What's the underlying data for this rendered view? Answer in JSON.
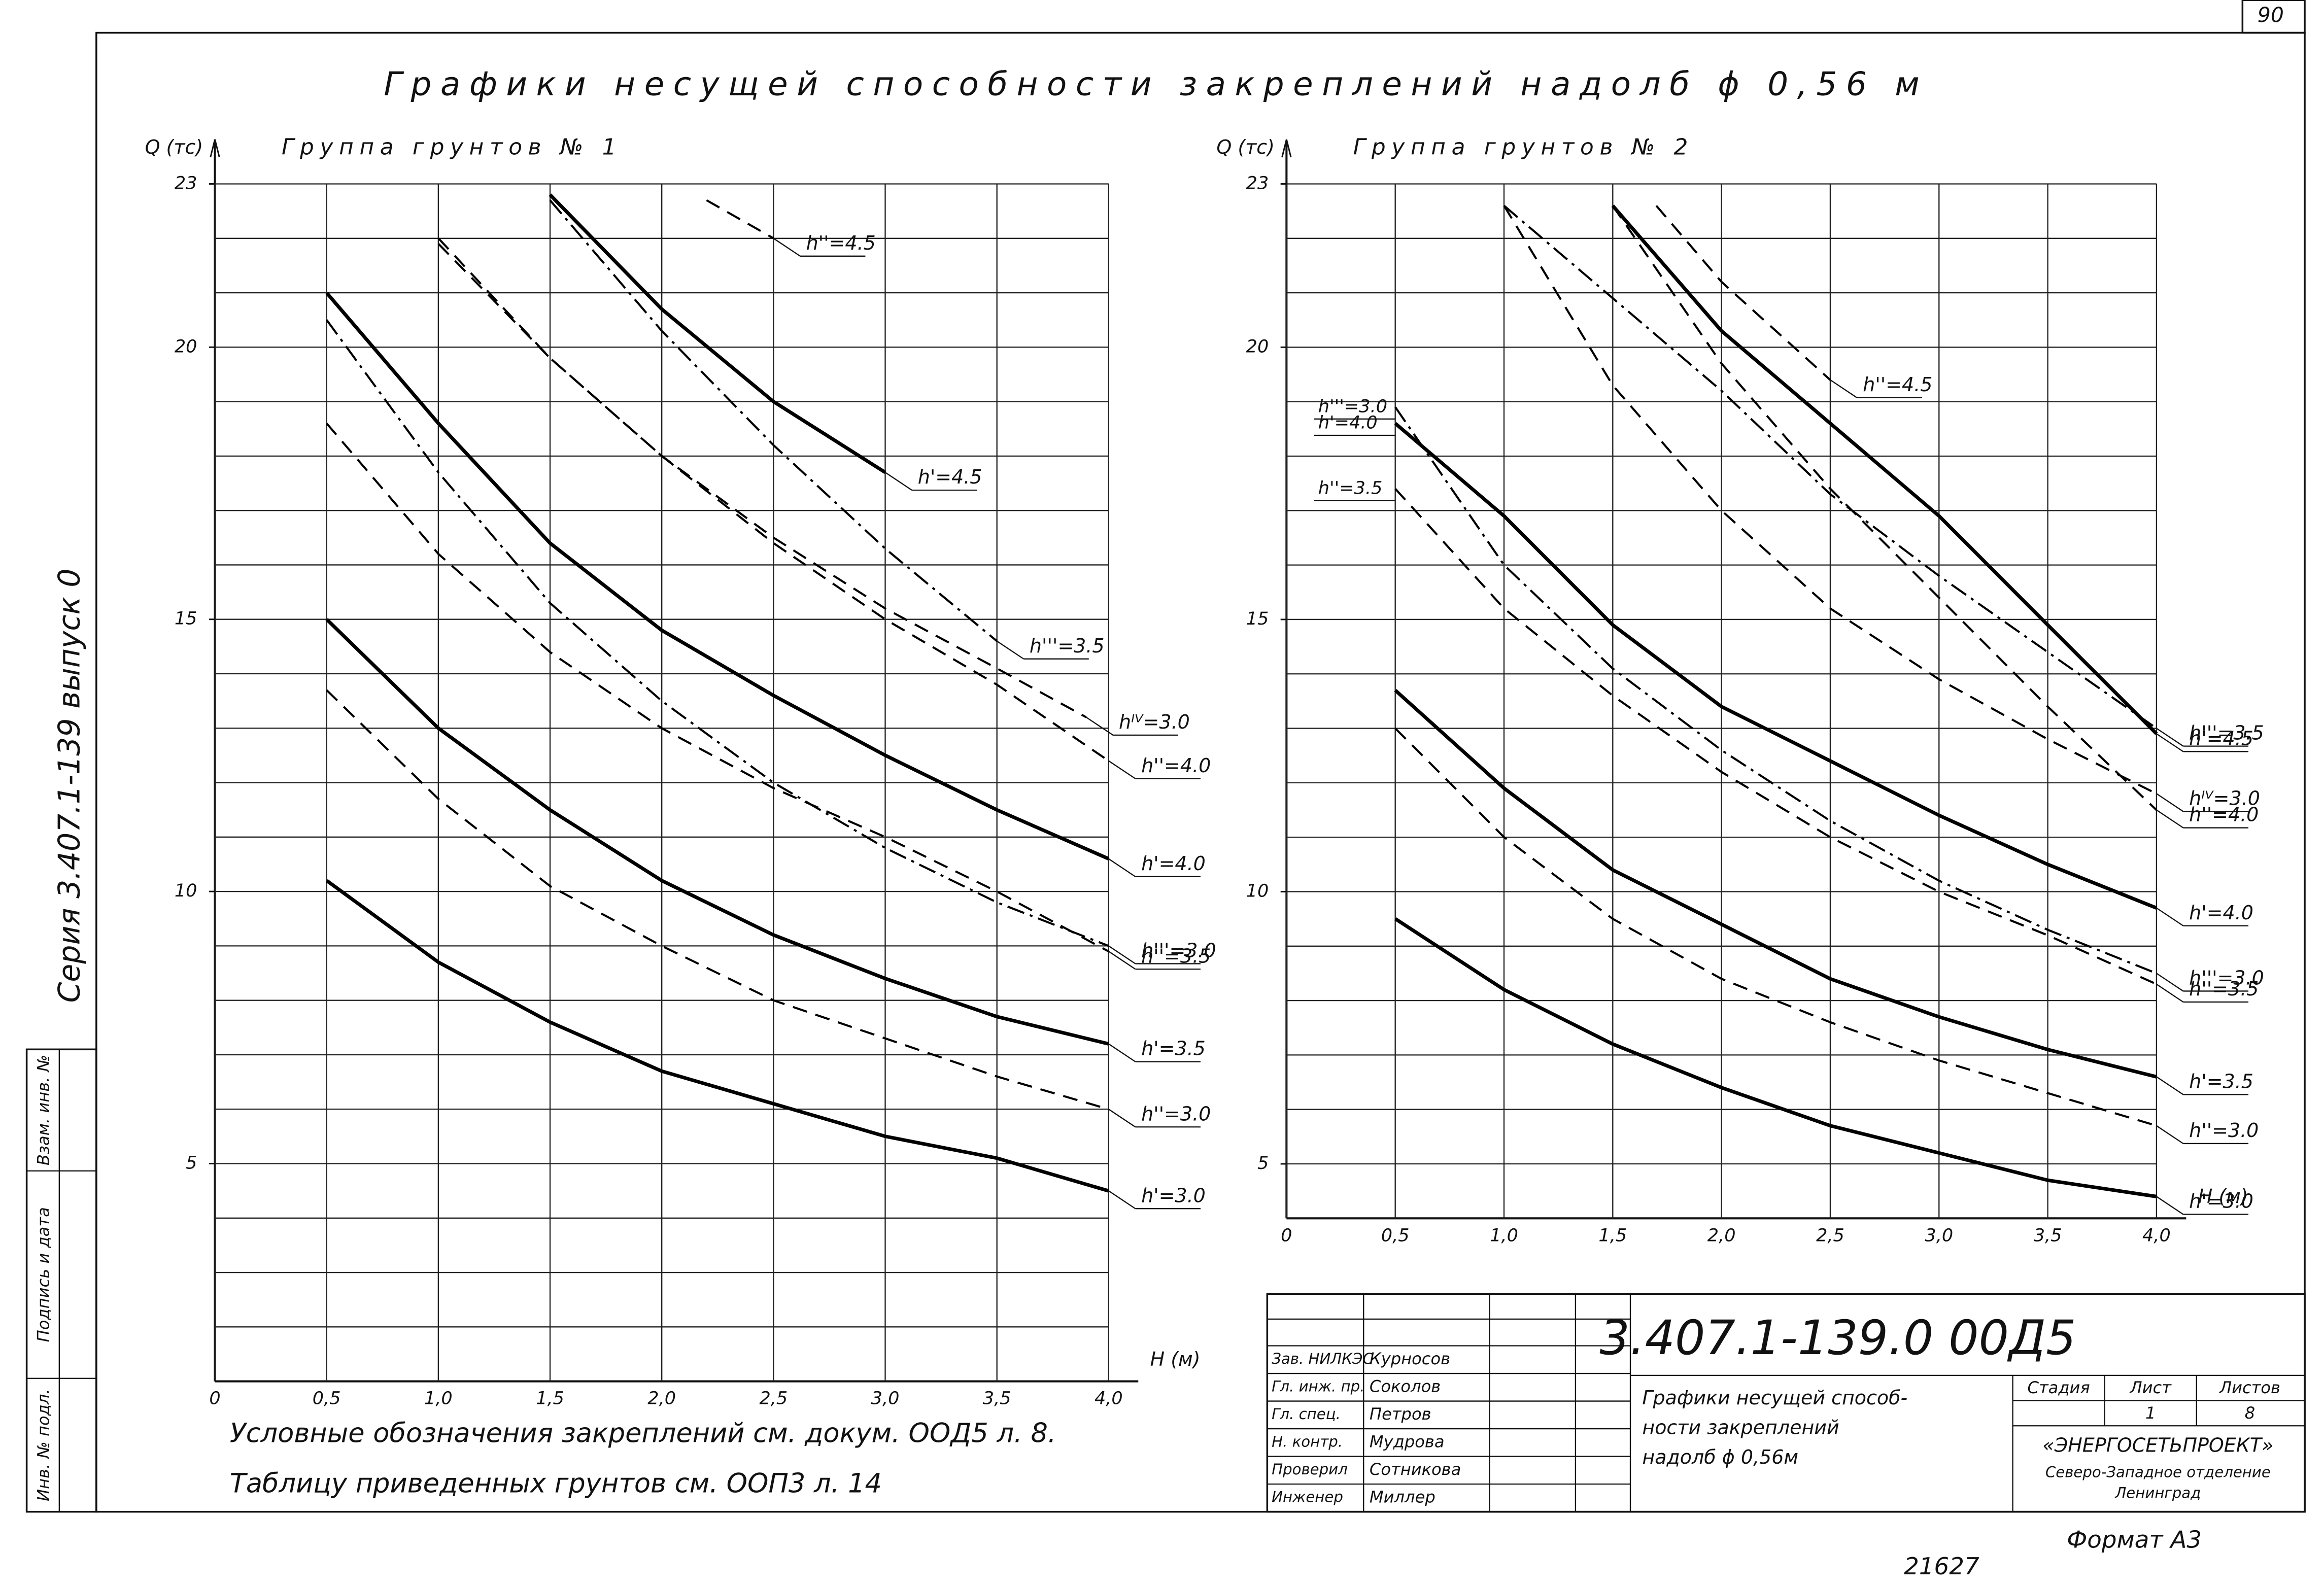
{
  "sheet": {
    "number": "90",
    "format": "Формат А3",
    "inventory": "21627"
  },
  "title": "Графики несущей способности закреплений надолб ϕ 0,56 м",
  "margin": {
    "series": "Серия 3.407.1-139 выпуск 0",
    "cells": [
      "Взам. инв. №",
      "Подпись и дата",
      "Инв. № подл."
    ]
  },
  "chart_data": [
    {
      "type": "line",
      "title": "Группа грунтов № 1",
      "y_label": "Q (тс)",
      "x_label": "H (м)",
      "xlim": [
        0,
        4
      ],
      "xticks": [
        0,
        {
          "value": 0.5,
          "label": "0,5"
        },
        {
          "value": 1,
          "label": "1,0"
        },
        {
          "value": 1.5,
          "label": "1,5"
        },
        {
          "value": 2,
          "label": "2,0"
        },
        {
          "value": 2.5,
          "label": "2,5"
        },
        {
          "value": 3,
          "label": "3,0"
        },
        {
          "value": 3.5,
          "label": "3,5"
        },
        {
          "value": 4,
          "label": "4,0"
        }
      ],
      "ylim": [
        1,
        23
      ],
      "yticks": [
        5,
        10,
        15,
        20,
        23
      ],
      "ygrid": [
        2,
        3,
        4,
        5,
        6,
        7,
        8,
        9,
        10,
        11,
        12,
        13,
        14,
        15,
        16,
        17,
        18,
        19,
        20,
        21,
        22
      ],
      "grid": true,
      "series": [
        {
          "name": "h'=3.0",
          "color": "#000000",
          "style": "solid",
          "x": [
            0.5,
            1,
            1.5,
            2,
            2.5,
            3,
            3.5,
            4
          ],
          "values": [
            10.2,
            8.7,
            7.6,
            6.7,
            6.1,
            5.5,
            5.1,
            4.5
          ]
        },
        {
          "name": "h''=3.0",
          "color": "#000000",
          "style": "dashed",
          "x": [
            0.5,
            1,
            1.5,
            2,
            2.5,
            3,
            3.5,
            4
          ],
          "values": [
            13.7,
            11.7,
            10.1,
            9.0,
            8.0,
            7.3,
            6.6,
            6.0
          ]
        },
        {
          "name": "h'=3.5",
          "color": "#000000",
          "style": "solid",
          "x": [
            0.5,
            1,
            1.5,
            2,
            2.5,
            3,
            3.5,
            4
          ],
          "values": [
            15.0,
            13.0,
            11.5,
            10.2,
            9.2,
            8.4,
            7.7,
            7.2
          ]
        },
        {
          "name": "h''=3.5",
          "color": "#000000",
          "style": "dashed",
          "x": [
            0.5,
            1,
            1.5,
            2,
            2.5,
            3,
            3.5,
            4
          ],
          "values": [
            18.6,
            16.2,
            14.4,
            13.0,
            11.9,
            11.0,
            10.0,
            8.9
          ]
        },
        {
          "name": "h'''=3.0",
          "color": "#000000",
          "style": "dashdot",
          "x": [
            0.5,
            1,
            1.5,
            2,
            2.5,
            3,
            3.5,
            4
          ],
          "values": [
            20.5,
            17.7,
            15.3,
            13.5,
            12.0,
            10.8,
            9.8,
            9.0
          ]
        },
        {
          "name": "h'=4.0",
          "color": "#000000",
          "style": "solid",
          "x": [
            0.5,
            1,
            1.5,
            2,
            2.5,
            3,
            3.5,
            4
          ],
          "values": [
            21.0,
            18.6,
            16.4,
            14.8,
            13.6,
            12.5,
            11.5,
            10.6
          ]
        },
        {
          "name": "h''=4.0",
          "color": "#000000",
          "style": "dashed",
          "x": [
            1,
            1.5,
            2,
            2.5,
            3,
            3.5,
            4
          ],
          "values": [
            21.9,
            19.8,
            18.0,
            16.4,
            15.0,
            13.8,
            12.4
          ]
        },
        {
          "name": "hᴵⱽ=3.0",
          "color": "#000000",
          "style": "dashed",
          "x": [
            1,
            1.5,
            2,
            2.5,
            3,
            3.5,
            3.9
          ],
          "values": [
            22.0,
            19.8,
            18.0,
            16.5,
            15.2,
            14.1,
            13.2
          ]
        },
        {
          "name": "h'''=3.5",
          "color": "#000000",
          "style": "dashdot",
          "x": [
            1.5,
            2,
            2.5,
            3,
            3.5
          ],
          "values": [
            22.7,
            20.3,
            18.2,
            16.3,
            14.6
          ]
        },
        {
          "name": "h'=4.5",
          "color": "#000000",
          "style": "solid",
          "x": [
            1.5,
            2,
            2.5,
            3
          ],
          "values": [
            22.8,
            20.7,
            19.0,
            17.7
          ]
        },
        {
          "name": "h''=4.5",
          "color": "#000000",
          "style": "dashed",
          "x": [
            2.2,
            2.5
          ],
          "values": [
            22.7,
            22.0
          ]
        }
      ]
    },
    {
      "type": "line",
      "title": "Группа грунтов № 2",
      "y_label": "Q (тс)",
      "x_label": "H (м)",
      "xlim": [
        0,
        4
      ],
      "xticks": [
        0,
        {
          "value": 0.5,
          "label": "0,5"
        },
        {
          "value": 1,
          "label": "1,0"
        },
        {
          "value": 1.5,
          "label": "1,5"
        },
        {
          "value": 2,
          "label": "2,0"
        },
        {
          "value": 2.5,
          "label": "2,5"
        },
        {
          "value": 3,
          "label": "3,0"
        },
        {
          "value": 3.5,
          "label": "3,5"
        },
        {
          "value": 4,
          "label": "4,0"
        }
      ],
      "ylim": [
        4,
        23
      ],
      "yticks": [
        5,
        10,
        15,
        20,
        23
      ],
      "ygrid": [
        5,
        6,
        7,
        8,
        9,
        10,
        11,
        12,
        13,
        14,
        15,
        16,
        17,
        18,
        19,
        20,
        21,
        22
      ],
      "grid": true,
      "series": [
        {
          "name": "h'=3.0",
          "color": "#000000",
          "style": "solid",
          "x": [
            0.5,
            1,
            1.5,
            2,
            2.5,
            3,
            3.5,
            4
          ],
          "values": [
            9.5,
            8.2,
            7.2,
            6.4,
            5.7,
            5.2,
            4.7,
            4.4
          ]
        },
        {
          "name": "h''=3.0",
          "color": "#000000",
          "style": "dashed",
          "x": [
            0.5,
            1,
            1.5,
            2,
            2.5,
            3,
            3.5,
            4
          ],
          "values": [
            13.0,
            11.0,
            9.5,
            8.4,
            7.6,
            6.9,
            6.3,
            5.7
          ]
        },
        {
          "name": "h'=3.5",
          "color": "#000000",
          "style": "solid",
          "x": [
            0.5,
            1,
            1.5,
            2,
            2.5,
            3,
            3.5,
            4
          ],
          "values": [
            13.7,
            11.9,
            10.4,
            9.4,
            8.4,
            7.7,
            7.1,
            6.6
          ]
        },
        {
          "name": "h''=3.5",
          "color": "#000000",
          "style": "dashed",
          "x": [
            0.5,
            1,
            1.5,
            2,
            2.5,
            3,
            3.5,
            4
          ],
          "values": [
            17.4,
            15.2,
            13.6,
            12.2,
            11.0,
            10.0,
            9.2,
            8.3
          ]
        },
        {
          "name": "h'''=3.0",
          "color": "#000000",
          "style": "dashdot",
          "x": [
            0.5,
            1,
            1.5,
            2,
            2.5,
            3,
            3.5,
            4
          ],
          "values": [
            18.9,
            16.0,
            14.1,
            12.6,
            11.3,
            10.2,
            9.3,
            8.5
          ]
        },
        {
          "name": "h'=4.0",
          "color": "#000000",
          "style": "solid",
          "x": [
            0.5,
            1,
            1.5,
            2,
            2.5,
            3,
            3.5,
            4
          ],
          "values": [
            18.6,
            16.9,
            14.9,
            13.4,
            12.4,
            11.4,
            10.5,
            9.7
          ]
        },
        {
          "name": "hᴵⱽ=3.0",
          "color": "#000000",
          "style": "dashed",
          "x": [
            1,
            1.5,
            2,
            2.5,
            3,
            3.5,
            4
          ],
          "values": [
            22.6,
            19.3,
            17.0,
            15.2,
            13.9,
            12.8,
            11.8
          ]
        },
        {
          "name": "h''=4.0",
          "color": "#000000",
          "style": "dashed",
          "x": [
            1.5,
            2,
            2.5,
            3,
            3.5,
            4
          ],
          "values": [
            22.6,
            19.7,
            17.4,
            15.4,
            13.4,
            11.5
          ]
        },
        {
          "name": "h'''=3.5",
          "color": "#000000",
          "style": "dashdot",
          "x": [
            1,
            1.5,
            2,
            2.5,
            3,
            3.5,
            4
          ],
          "values": [
            22.6,
            20.9,
            19.2,
            17.3,
            15.8,
            14.4,
            13.0
          ]
        },
        {
          "name": "h'=4.5",
          "color": "#000000",
          "style": "solid",
          "x": [
            1.5,
            2,
            2.5,
            3,
            3.5,
            4
          ],
          "values": [
            22.6,
            20.3,
            18.6,
            16.9,
            14.9,
            12.9
          ]
        },
        {
          "name": "h''=4.5",
          "color": "#000000",
          "style": "dashed",
          "x": [
            1.7,
            2,
            2.5
          ],
          "values": [
            22.6,
            21.2,
            19.4
          ]
        }
      ]
    }
  ],
  "notes": [
    "Условные обозначения закреплений см. докум. ООД5 л. 8.",
    "Таблицу приведенных грунтов см. ООП3 л. 14"
  ],
  "title_block": {
    "code": "3.407.1-139.0  00Д5",
    "staff": [
      [
        "Зав. НИЛКЭС",
        "Курносов"
      ],
      [
        "Гл. инж. пр.",
        "Соколов"
      ],
      [
        "Гл. спец.",
        "Петров"
      ],
      [
        "Н. контр.",
        "Мудрова"
      ],
      [
        "Проверил",
        "Сотникова"
      ],
      [
        "Инженер",
        "Миллер"
      ]
    ],
    "description": [
      "Графики несущей способ-",
      "ности закреплений",
      "надолб ϕ 0,56м"
    ],
    "stage_header": [
      "Стадия",
      "Лист",
      "Листов"
    ],
    "sheet": "1",
    "sheets": "8",
    "organization": "«ЭНЕРГОСЕТЬПРОЕКТ»",
    "branch": [
      "Северо-Западное отделение",
      "Ленинград"
    ]
  }
}
